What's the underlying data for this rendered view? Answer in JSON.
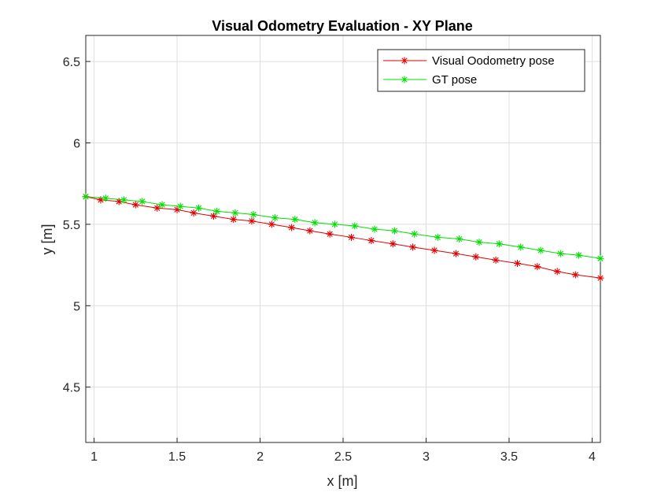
{
  "chart_data": {
    "type": "line",
    "title": "Visual Odometry Evaluation - XY Plane",
    "xlabel": "x [m]",
    "ylabel": "y [m]",
    "xlim": [
      0.95,
      4.05
    ],
    "ylim": [
      4.16,
      6.66
    ],
    "xticks": [
      1,
      1.5,
      2,
      2.5,
      3,
      3.5,
      4
    ],
    "xtick_labels": [
      "1",
      "1.5",
      "2",
      "2.5",
      "3",
      "3.5",
      "4"
    ],
    "yticks": [
      4.5,
      5,
      5.5,
      6,
      6.5
    ],
    "ytick_labels": [
      "4.5",
      "5",
      "5.5",
      "6",
      "6.5"
    ],
    "grid": true,
    "legend_position": "top-right",
    "series": [
      {
        "name": "Visual Oodometry pose",
        "color": "#e00000",
        "marker": "asterisk",
        "x": [
          0.95,
          1.04,
          1.15,
          1.25,
          1.38,
          1.5,
          1.6,
          1.72,
          1.84,
          1.95,
          2.07,
          2.19,
          2.3,
          2.42,
          2.55,
          2.67,
          2.8,
          2.92,
          3.05,
          3.18,
          3.3,
          3.42,
          3.55,
          3.67,
          3.79,
          3.9,
          4.05
        ],
        "y": [
          5.67,
          5.65,
          5.64,
          5.62,
          5.6,
          5.59,
          5.57,
          5.55,
          5.53,
          5.52,
          5.5,
          5.48,
          5.46,
          5.44,
          5.42,
          5.4,
          5.38,
          5.36,
          5.34,
          5.32,
          5.3,
          5.28,
          5.26,
          5.24,
          5.21,
          5.19,
          5.17
        ]
      },
      {
        "name": "GT pose",
        "color": "#00e000",
        "marker": "asterisk",
        "x": [
          0.95,
          1.07,
          1.18,
          1.29,
          1.41,
          1.52,
          1.63,
          1.74,
          1.85,
          1.96,
          2.09,
          2.21,
          2.33,
          2.45,
          2.57,
          2.69,
          2.81,
          2.93,
          3.07,
          3.2,
          3.32,
          3.44,
          3.57,
          3.69,
          3.81,
          3.92,
          4.05
        ],
        "y": [
          5.67,
          5.66,
          5.65,
          5.64,
          5.62,
          5.61,
          5.6,
          5.58,
          5.57,
          5.56,
          5.54,
          5.53,
          5.51,
          5.5,
          5.49,
          5.47,
          5.46,
          5.44,
          5.42,
          5.41,
          5.39,
          5.38,
          5.36,
          5.34,
          5.32,
          5.31,
          5.29
        ]
      }
    ]
  }
}
